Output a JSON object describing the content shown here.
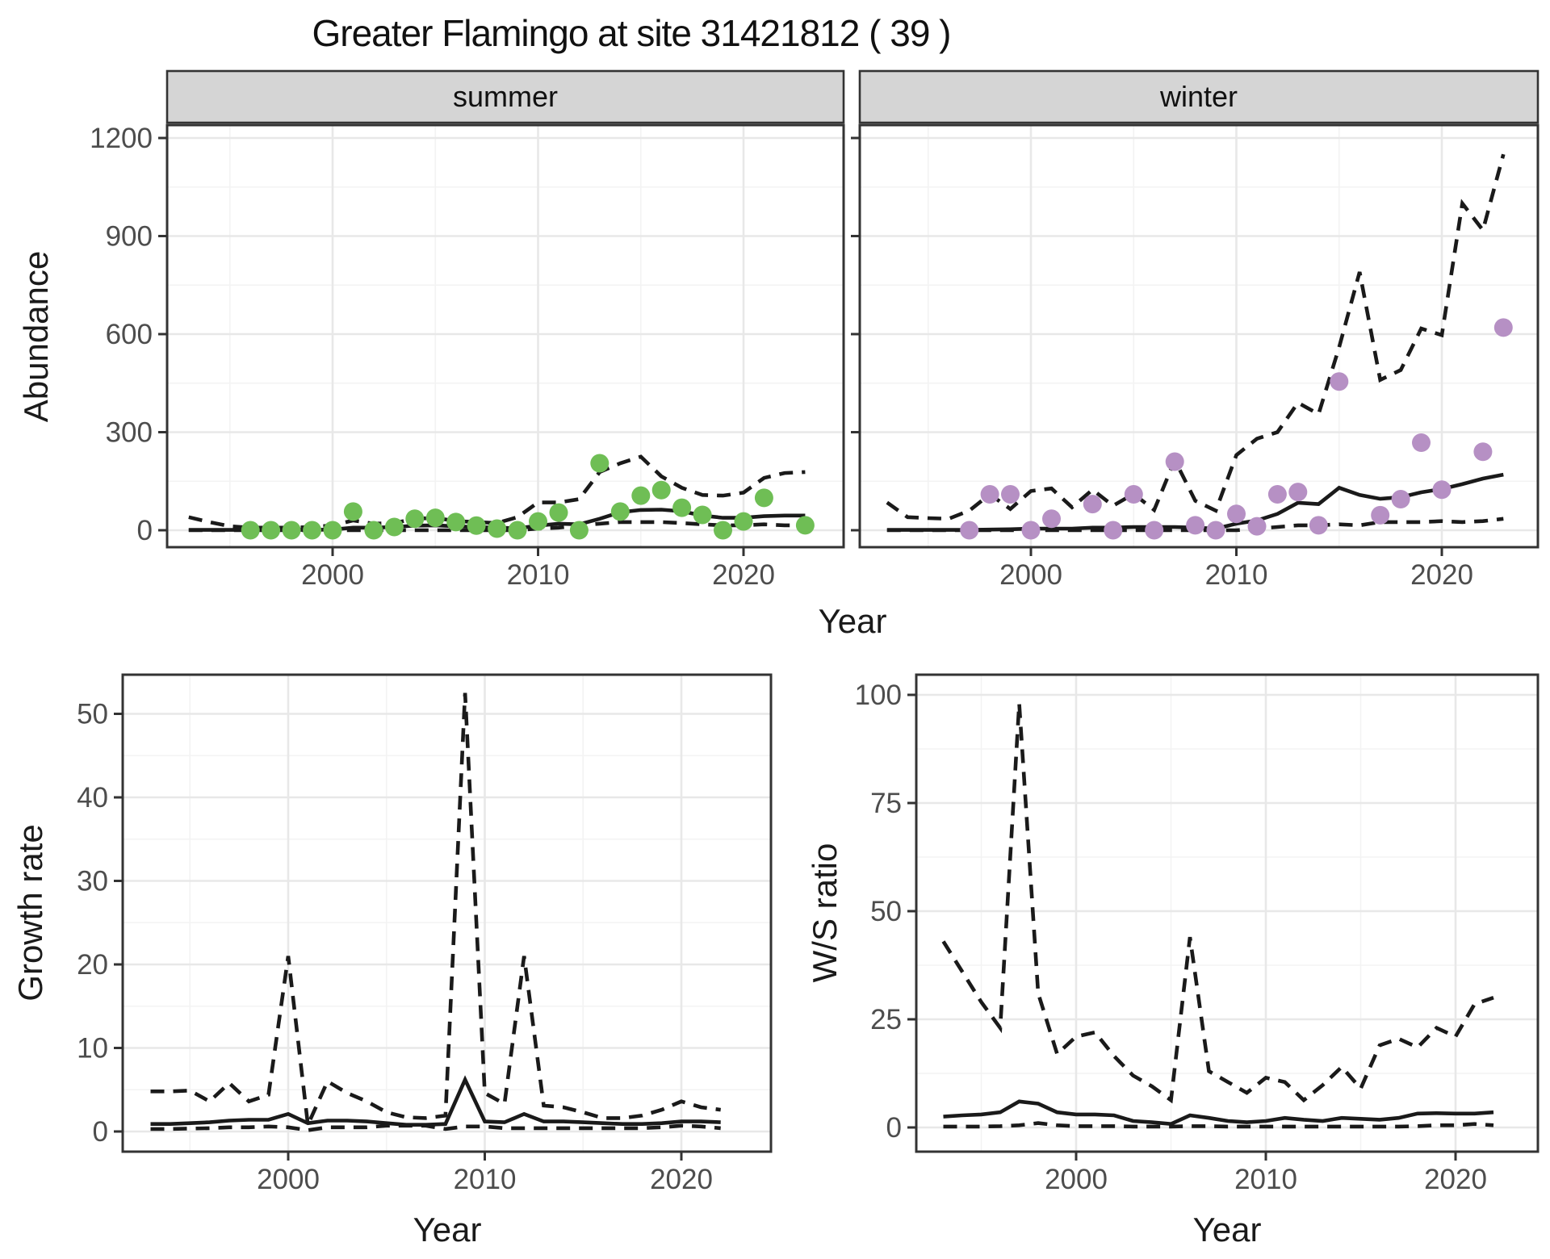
{
  "title": "Greater Flamingo at site 31421812 ( 39 )",
  "axis_titles": {
    "abundance": "Abundance",
    "growth": "Growth rate",
    "ws_ratio": "W/S ratio",
    "year": "Year"
  },
  "facets": {
    "summer": "summer",
    "winter": "winter"
  },
  "colors": {
    "summer_points": "#6FBE55",
    "winter_points": "#B690C4",
    "line": "#1A1A1A",
    "grid_major": "#E8E8E8",
    "grid_minor": "#F3F3F3",
    "strip_bg": "#D5D5D5",
    "panel_border": "#333333",
    "tick_text": "#4D4D4D"
  },
  "chart_data": [
    {
      "id": "abundance-summer",
      "type": "line",
      "facet_label": "summer",
      "xlabel": "Year",
      "ylabel": "Abundance",
      "ylim": [
        0,
        1200
      ],
      "xticks": [
        2000,
        2010,
        2020
      ],
      "xminor": [
        1995,
        2005,
        2015
      ],
      "yticks": [
        0,
        300,
        600,
        900,
        1200
      ],
      "yminor": [
        150,
        450,
        750,
        1050
      ],
      "x_years": [
        1993,
        1994,
        1995,
        1996,
        1997,
        1998,
        1999,
        2000,
        2001,
        2002,
        2003,
        2004,
        2005,
        2006,
        2007,
        2008,
        2009,
        2010,
        2011,
        2012,
        2013,
        2014,
        2015,
        2016,
        2017,
        2018,
        2019,
        2020,
        2021,
        2022,
        2023
      ],
      "series": [
        {
          "name": "model-fit",
          "style": "solid",
          "values": [
            1,
            1,
            1,
            1,
            1,
            1,
            1,
            2,
            8,
            8,
            10,
            14,
            15,
            12,
            10,
            8,
            6,
            14,
            20,
            18,
            35,
            55,
            62,
            63,
            58,
            45,
            38,
            38,
            43,
            45,
            45
          ]
        },
        {
          "name": "ci-upper",
          "style": "dashed",
          "values": [
            40,
            25,
            12,
            8,
            8,
            8,
            10,
            15,
            30,
            20,
            22,
            35,
            38,
            28,
            25,
            22,
            40,
            85,
            85,
            95,
            178,
            205,
            225,
            165,
            130,
            108,
            106,
            115,
            160,
            175,
            178
          ]
        },
        {
          "name": "ci-lower",
          "style": "dashed",
          "values": [
            0,
            0,
            0,
            0,
            0,
            0,
            0,
            0,
            0,
            0,
            0,
            0,
            0,
            0,
            0,
            0,
            0,
            5,
            8,
            15,
            20,
            25,
            25,
            25,
            22,
            18,
            15,
            15,
            18,
            15,
            15
          ]
        }
      ],
      "observations": {
        "color_key": "summer_points",
        "years": [
          1996,
          1997,
          1998,
          1999,
          2000,
          2001,
          2002,
          2003,
          2004,
          2005,
          2006,
          2007,
          2008,
          2009,
          2010,
          2011,
          2012,
          2013,
          2014,
          2015,
          2016,
          2017,
          2018,
          2019,
          2020,
          2021,
          2023
        ],
        "values": [
          0,
          0,
          0,
          0,
          0,
          57,
          0,
          10,
          35,
          38,
          25,
          14,
          5,
          0,
          27,
          54,
          0,
          205,
          57,
          106,
          123,
          69,
          47,
          0,
          27,
          99,
          15
        ]
      }
    },
    {
      "id": "abundance-winter",
      "type": "line",
      "facet_label": "winter",
      "xlabel": "Year",
      "ylabel": "Abundance",
      "ylim": [
        0,
        1200
      ],
      "xticks": [
        2000,
        2010,
        2020
      ],
      "xminor": [
        1995,
        2005,
        2015
      ],
      "yticks": [
        0,
        300,
        600,
        900,
        1200
      ],
      "yminor": [
        150,
        450,
        750,
        1050
      ],
      "x_years": [
        1993,
        1994,
        1995,
        1996,
        1997,
        1998,
        1999,
        2000,
        2001,
        2002,
        2003,
        2004,
        2005,
        2006,
        2007,
        2008,
        2009,
        2010,
        2011,
        2012,
        2013,
        2014,
        2015,
        2016,
        2017,
        2018,
        2019,
        2020,
        2021,
        2022,
        2023
      ],
      "series": [
        {
          "name": "model-fit",
          "style": "solid",
          "values": [
            1,
            1,
            1,
            1,
            1,
            2,
            3,
            5,
            5,
            5,
            8,
            8,
            10,
            10,
            10,
            8,
            5,
            20,
            30,
            50,
            84,
            80,
            130,
            108,
            96,
            101,
            116,
            126,
            141,
            158,
            170
          ]
        },
        {
          "name": "ci-upper",
          "style": "dashed",
          "values": [
            85,
            40,
            37,
            35,
            60,
            110,
            65,
            120,
            128,
            70,
            124,
            75,
            111,
            62,
            215,
            90,
            60,
            230,
            280,
            300,
            390,
            355,
            560,
            790,
            460,
            490,
            617,
            597,
            1000,
            918,
            1150
          ]
        },
        {
          "name": "ci-lower",
          "style": "dashed",
          "values": [
            0,
            0,
            0,
            0,
            0,
            0,
            0,
            0,
            0,
            0,
            0,
            0,
            0,
            0,
            0,
            0,
            0,
            0,
            5,
            10,
            15,
            15,
            18,
            15,
            25,
            25,
            25,
            28,
            25,
            28,
            35
          ]
        }
      ],
      "observations": {
        "color_key": "winter_points",
        "years": [
          1997,
          1998,
          1999,
          2000,
          2001,
          2003,
          2004,
          2005,
          2006,
          2007,
          2008,
          2009,
          2010,
          2011,
          2012,
          2013,
          2014,
          2015,
          2017,
          2018,
          2019,
          2020,
          2022,
          2023
        ],
        "values": [
          0,
          110,
          110,
          0,
          35,
          80,
          0,
          110,
          0,
          210,
          15,
          0,
          50,
          12,
          110,
          117,
          15,
          455,
          46,
          95,
          268,
          124,
          240,
          620
        ]
      }
    },
    {
      "id": "growth-rate",
      "type": "line",
      "facet_label": null,
      "xlabel": "Year",
      "ylabel": "Growth rate",
      "ylim": [
        0,
        52.5
      ],
      "xticks": [
        2000,
        2010,
        2020
      ],
      "xminor": [
        1995,
        2005,
        2015
      ],
      "yticks": [
        0,
        10,
        20,
        30,
        40,
        50
      ],
      "yminor": [
        5,
        15,
        25,
        35,
        45
      ],
      "x_years": [
        1993,
        1994,
        1995,
        1996,
        1997,
        1998,
        1999,
        2000,
        2001,
        2002,
        2003,
        2004,
        2005,
        2006,
        2007,
        2008,
        2009,
        2010,
        2011,
        2012,
        2013,
        2014,
        2015,
        2016,
        2017,
        2018,
        2019,
        2020,
        2021,
        2022
      ],
      "series": [
        {
          "name": "model-fit",
          "style": "solid",
          "values": [
            0.9,
            0.9,
            1,
            1.1,
            1.3,
            1.4,
            1.4,
            2.1,
            1,
            1.3,
            1.3,
            1.2,
            1,
            0.8,
            0.8,
            0.9,
            6.2,
            1.2,
            1.1,
            2.1,
            1.2,
            1.2,
            1.1,
            1,
            0.9,
            0.9,
            1,
            1.2,
            1.2,
            1.1
          ]
        },
        {
          "name": "ci-upper",
          "style": "dashed",
          "values": [
            4.8,
            4.8,
            4.9,
            3.6,
            5.8,
            3.6,
            4.4,
            21,
            0.8,
            6,
            4.6,
            3.6,
            2.3,
            1.7,
            1.6,
            1.9,
            52.5,
            4.6,
            3.3,
            21,
            3.1,
            2.9,
            2.3,
            1.6,
            1.6,
            1.9,
            2.6,
            3.6,
            2.9,
            2.6
          ]
        },
        {
          "name": "ci-lower",
          "style": "dashed",
          "values": [
            0.3,
            0.3,
            0.35,
            0.4,
            0.5,
            0.5,
            0.6,
            0.5,
            0.15,
            0.5,
            0.5,
            0.5,
            0.7,
            0.7,
            0.7,
            0.3,
            0.6,
            0.6,
            0.4,
            0.4,
            0.4,
            0.4,
            0.4,
            0.4,
            0.4,
            0.4,
            0.5,
            0.7,
            0.6,
            0.4
          ]
        }
      ],
      "observations": null
    },
    {
      "id": "ws-ratio",
      "type": "line",
      "facet_label": null,
      "xlabel": "Year",
      "ylabel": "W/S ratio",
      "ylim": [
        0,
        100
      ],
      "xticks": [
        2000,
        2010,
        2020
      ],
      "xminor": [
        1995,
        2005,
        2015
      ],
      "yticks": [
        0,
        25,
        50,
        75,
        100
      ],
      "yminor": [
        12.5,
        37.5,
        62.5,
        87.5
      ],
      "x_years": [
        1993,
        1994,
        1995,
        1996,
        1997,
        1998,
        1999,
        2000,
        2001,
        2002,
        2003,
        2004,
        2005,
        2006,
        2007,
        2008,
        2009,
        2010,
        2011,
        2012,
        2013,
        2014,
        2015,
        2016,
        2017,
        2018,
        2019,
        2020,
        2021,
        2022
      ],
      "series": [
        {
          "name": "model-fit",
          "style": "solid",
          "values": [
            2.5,
            2.8,
            3,
            3.5,
            6,
            5.5,
            3.5,
            3,
            3,
            2.8,
            1.5,
            1.2,
            0.8,
            2.8,
            2.2,
            1.5,
            1.2,
            1.5,
            2.2,
            1.8,
            1.5,
            2.2,
            2,
            1.8,
            2.2,
            3.2,
            3.3,
            3.2,
            3.2,
            3.5
          ]
        },
        {
          "name": "ci-upper",
          "style": "dashed",
          "values": [
            43,
            36,
            29,
            23,
            98,
            31,
            17,
            21,
            22,
            16.5,
            12,
            9.5,
            6.3,
            44,
            13,
            10.5,
            8,
            11.5,
            10.5,
            6.3,
            9.8,
            14,
            9,
            19,
            20.5,
            18.5,
            23,
            21,
            28.5,
            30
          ]
        },
        {
          "name": "ci-lower",
          "style": "dashed",
          "values": [
            0.2,
            0.2,
            0.2,
            0.3,
            0.5,
            1,
            0.5,
            0.3,
            0.3,
            0.3,
            0.2,
            0.2,
            0.2,
            0.3,
            0.3,
            0.2,
            0.2,
            0.2,
            0.2,
            0.2,
            0.2,
            0.2,
            0.2,
            0.2,
            0.2,
            0.3,
            0.5,
            0.5,
            0.8,
            0.5
          ]
        }
      ],
      "observations": null
    }
  ]
}
